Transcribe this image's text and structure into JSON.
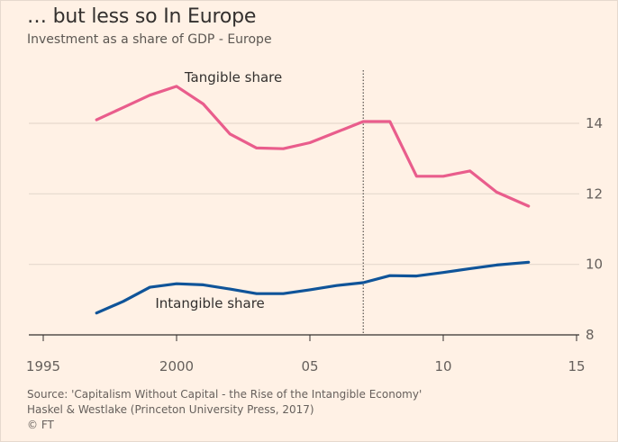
{
  "header": {
    "title": "… but less so In Europe",
    "subtitle": "Investment as a share of GDP - Europe"
  },
  "footer": {
    "source_line1": "Source: 'Capitalism Without Capital - the Rise of the Intangible Economy'",
    "source_line2": "Haskel & Westlake (Princeton University Press, 2017)",
    "credit": "© FT"
  },
  "colors": {
    "background": "#fff1e5",
    "tangible": "#e95d8c",
    "intangible": "#0f5499",
    "grid": "#e6d9ce",
    "axis": "#33302e"
  },
  "chart_data": {
    "type": "line",
    "title": "… but less so In Europe",
    "subtitle": "Investment as a share of GDP - Europe",
    "xlim": [
      1995,
      2015
    ],
    "ylim": [
      8,
      15.5
    ],
    "x_ticks": [
      {
        "value": 1995,
        "label": "1995"
      },
      {
        "value": 2000,
        "label": "2000"
      },
      {
        "value": 2005,
        "label": "05"
      },
      {
        "value": 2010,
        "label": "10"
      },
      {
        "value": 2015,
        "label": "15"
      }
    ],
    "y_ticks": [
      {
        "value": 8,
        "label": "8"
      },
      {
        "value": 10,
        "label": "10"
      },
      {
        "value": 12,
        "label": "12"
      },
      {
        "value": 14,
        "label": "14"
      }
    ],
    "grid": true,
    "y_axis_side": "right",
    "reference_line_x": 2007,
    "series": [
      {
        "name": "Tangible share",
        "color": "#e95d8c",
        "label_x": 2000.3,
        "label_y": 15.3,
        "points": [
          [
            1997,
            14.1
          ],
          [
            1998,
            14.45
          ],
          [
            1999,
            14.8
          ],
          [
            2000,
            15.05
          ],
          [
            2001,
            14.55
          ],
          [
            2002,
            13.7
          ],
          [
            2003,
            13.3
          ],
          [
            2004,
            13.28
          ],
          [
            2005,
            13.45
          ],
          [
            2006,
            13.75
          ],
          [
            2007,
            14.05
          ],
          [
            2008,
            14.05
          ],
          [
            2009,
            12.5
          ],
          [
            2010,
            12.5
          ],
          [
            2011,
            12.65
          ],
          [
            2012,
            12.05
          ],
          [
            2013.2,
            11.65
          ]
        ]
      },
      {
        "name": "Intangible share",
        "color": "#0f5499",
        "label_x": 1999.2,
        "label_y": 8.9,
        "points": [
          [
            1997,
            8.62
          ],
          [
            1998,
            8.95
          ],
          [
            1999,
            9.35
          ],
          [
            2000,
            9.45
          ],
          [
            2001,
            9.42
          ],
          [
            2002,
            9.3
          ],
          [
            2003,
            9.17
          ],
          [
            2004,
            9.17
          ],
          [
            2005,
            9.28
          ],
          [
            2006,
            9.4
          ],
          [
            2007,
            9.48
          ],
          [
            2008,
            9.68
          ],
          [
            2009,
            9.67
          ],
          [
            2010,
            9.77
          ],
          [
            2011,
            9.88
          ],
          [
            2012,
            9.98
          ],
          [
            2013.2,
            10.06
          ]
        ]
      }
    ]
  }
}
